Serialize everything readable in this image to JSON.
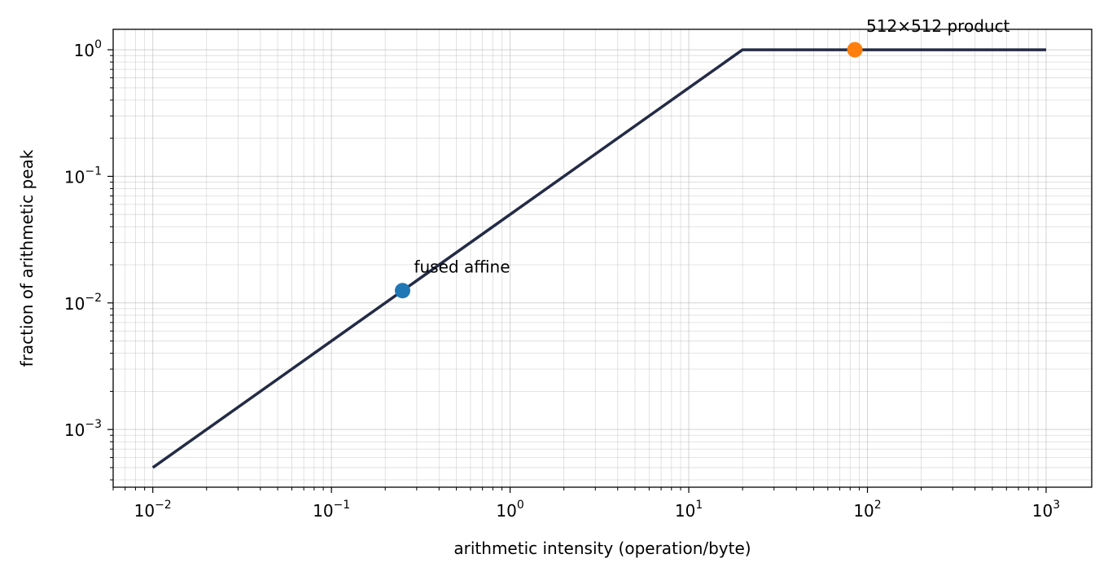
{
  "chart_data": {
    "type": "line",
    "title": "",
    "xlabel": "arithmetic intensity (operation/byte)",
    "ylabel": "fraction of arithmetic peak",
    "xscale": "log",
    "yscale": "log",
    "xlim": [
      0.006,
      1800
    ],
    "ylim": [
      0.00035,
      1.45
    ],
    "grid": true,
    "x_ticks": [
      {
        "base": "10",
        "exp": "−2",
        "value": 0.01
      },
      {
        "base": "10",
        "exp": "−1",
        "value": 0.1
      },
      {
        "base": "10",
        "exp": "0",
        "value": 1
      },
      {
        "base": "10",
        "exp": "1",
        "value": 10
      },
      {
        "base": "10",
        "exp": "2",
        "value": 100
      },
      {
        "base": "10",
        "exp": "3",
        "value": 1000
      }
    ],
    "y_ticks": [
      {
        "base": "10",
        "exp": "−3",
        "value": 0.001
      },
      {
        "base": "10",
        "exp": "−2",
        "value": 0.01
      },
      {
        "base": "10",
        "exp": "−1",
        "value": 0.1
      },
      {
        "base": "10",
        "exp": "0",
        "value": 1
      }
    ],
    "series": [
      {
        "color": "#232b45",
        "x": [
          0.01,
          20,
          1000
        ],
        "y": [
          0.0005,
          1.0,
          1.0
        ]
      }
    ],
    "points": [
      {
        "label": "fused affine",
        "x": 0.25,
        "y": 0.0125,
        "color": "#1f77b4"
      },
      {
        "label": "512×512 product",
        "x": 85,
        "y": 1.0,
        "color": "#ff7f0e"
      }
    ]
  }
}
